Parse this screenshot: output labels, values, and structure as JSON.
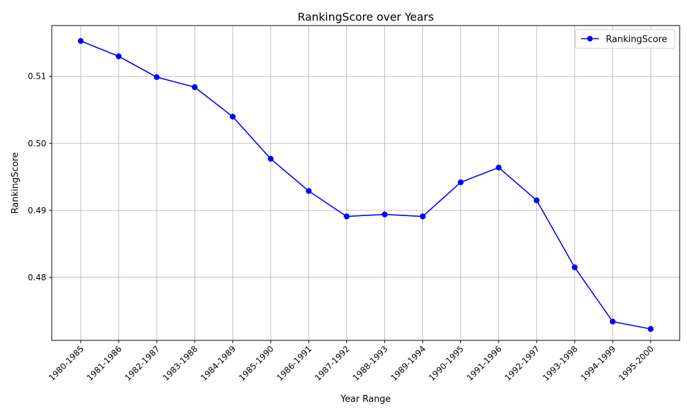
{
  "chart_data": {
    "type": "line",
    "title": "RankingScore over Years",
    "xlabel": "Year Range",
    "ylabel": "RankingScore",
    "categories": [
      "1980-1985",
      "1981-1986",
      "1982-1987",
      "1983-1988",
      "1984-1989",
      "1985-1990",
      "1986-1991",
      "1987-1992",
      "1988-1993",
      "1989-1994",
      "1990-1995",
      "1991-1996",
      "1992-1997",
      "1993-1998",
      "1994-1999",
      "1995-2000"
    ],
    "series": [
      {
        "name": "RankingScore",
        "color": "#0000ff",
        "marker": "circle",
        "values": [
          0.5153,
          0.513,
          0.5099,
          0.5084,
          0.504,
          0.4977,
          0.4929,
          0.4891,
          0.4894,
          0.4891,
          0.4942,
          0.4964,
          0.4915,
          0.4815,
          0.4734,
          0.4723
        ]
      }
    ],
    "ylim": [
      0.4706,
      0.5176
    ],
    "yticks": [
      0.48,
      0.49,
      0.5,
      0.51
    ],
    "ytick_labels": [
      "0.48",
      "0.49",
      "0.50",
      "0.51"
    ],
    "grid": true,
    "legend": {
      "position": "top-right",
      "entries": [
        "RankingScore"
      ]
    }
  }
}
